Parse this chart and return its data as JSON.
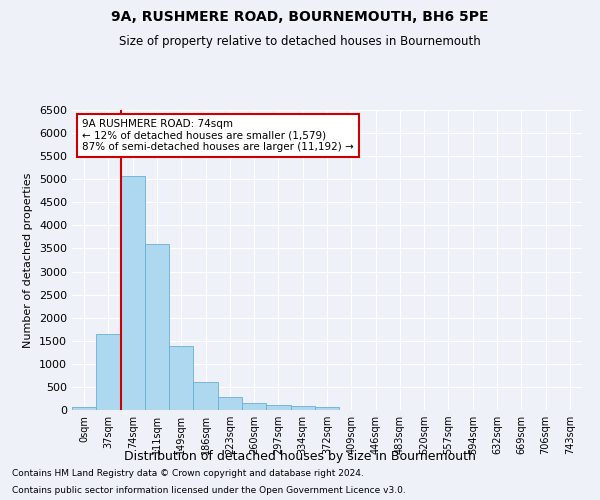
{
  "title1": "9A, RUSHMERE ROAD, BOURNEMOUTH, BH6 5PE",
  "title2": "Size of property relative to detached houses in Bournemouth",
  "xlabel": "Distribution of detached houses by size in Bournemouth",
  "ylabel": "Number of detached properties",
  "annotation_title": "9A RUSHMERE ROAD: 74sqm",
  "annotation_line1": "← 12% of detached houses are smaller (1,579)",
  "annotation_line2": "87% of semi-detached houses are larger (11,192) →",
  "footer1": "Contains HM Land Registry data © Crown copyright and database right 2024.",
  "footer2": "Contains public sector information licensed under the Open Government Licence v3.0.",
  "bar_color": "#add8f0",
  "bar_edge_color": "#6aaed6",
  "vline_color": "#cc0000",
  "annotation_box_color": "#ffffff",
  "annotation_box_edge": "#cc0000",
  "background_color": "#eef2f8",
  "categories": [
    "0sqm",
    "37sqm",
    "74sqm",
    "111sqm",
    "149sqm",
    "186sqm",
    "223sqm",
    "260sqm",
    "297sqm",
    "334sqm",
    "372sqm",
    "409sqm",
    "446sqm",
    "483sqm",
    "520sqm",
    "557sqm",
    "594sqm",
    "632sqm",
    "669sqm",
    "706sqm",
    "743sqm"
  ],
  "values": [
    70,
    1650,
    5080,
    3590,
    1390,
    610,
    290,
    150,
    110,
    80,
    60,
    0,
    0,
    0,
    0,
    0,
    0,
    0,
    0,
    0,
    0
  ],
  "ylim": [
    0,
    6500
  ],
  "yticks": [
    0,
    500,
    1000,
    1500,
    2000,
    2500,
    3000,
    3500,
    4000,
    4500,
    5000,
    5500,
    6000,
    6500
  ],
  "vline_x": 1.5,
  "figsize": [
    6.0,
    5.0
  ],
  "dpi": 100
}
